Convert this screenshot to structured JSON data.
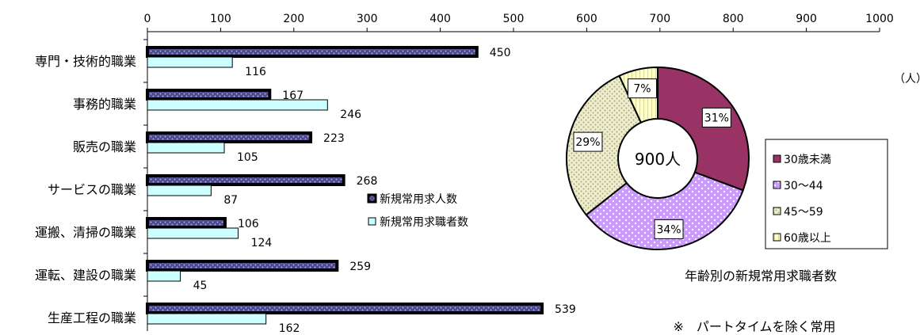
{
  "chart_data": [
    {
      "type": "bar",
      "orientation": "horizontal",
      "x_ticks": [
        "0",
        "100",
        "200",
        "300",
        "400",
        "500",
        "600",
        "700",
        "800",
        "900",
        "1000"
      ],
      "xlim": [
        0,
        1000
      ],
      "unit_label": "（人）",
      "categories": [
        "専門・技術的職業",
        "事務的職業",
        "販売の職業",
        "サービスの職業",
        "運搬、清掃の職業",
        "運転、建設の職業",
        "生産工程の職業"
      ],
      "series": [
        {
          "name": "新規常用求人数",
          "values": [
            450,
            167,
            223,
            268,
            106,
            259,
            539
          ],
          "color": "#4a4a8c"
        },
        {
          "name": "新規常用求職者数",
          "values": [
            116,
            246,
            105,
            87,
            124,
            45,
            162
          ],
          "color": "#ccffff"
        }
      ],
      "value_labels": [
        [
          "450",
          "167",
          "223",
          "268",
          "106",
          "259",
          "539"
        ],
        [
          "116",
          "246",
          "105",
          "87",
          "124",
          "45",
          "162"
        ]
      ],
      "legend_position": "right"
    },
    {
      "type": "pie",
      "donut": true,
      "center_label": "900人",
      "title": "年齢別の新規常用求職者数",
      "categories": [
        "30歳未満",
        "30～44",
        "45～59",
        "60歳以上"
      ],
      "values": [
        31,
        34,
        29,
        7
      ],
      "labels": [
        "31%",
        "34%",
        "29%",
        "7%"
      ],
      "colors": [
        "#993366",
        "#cc99ff",
        "#eeeecc",
        "#ffffcc"
      ]
    }
  ],
  "note": "※　パートタイムを除く常用"
}
